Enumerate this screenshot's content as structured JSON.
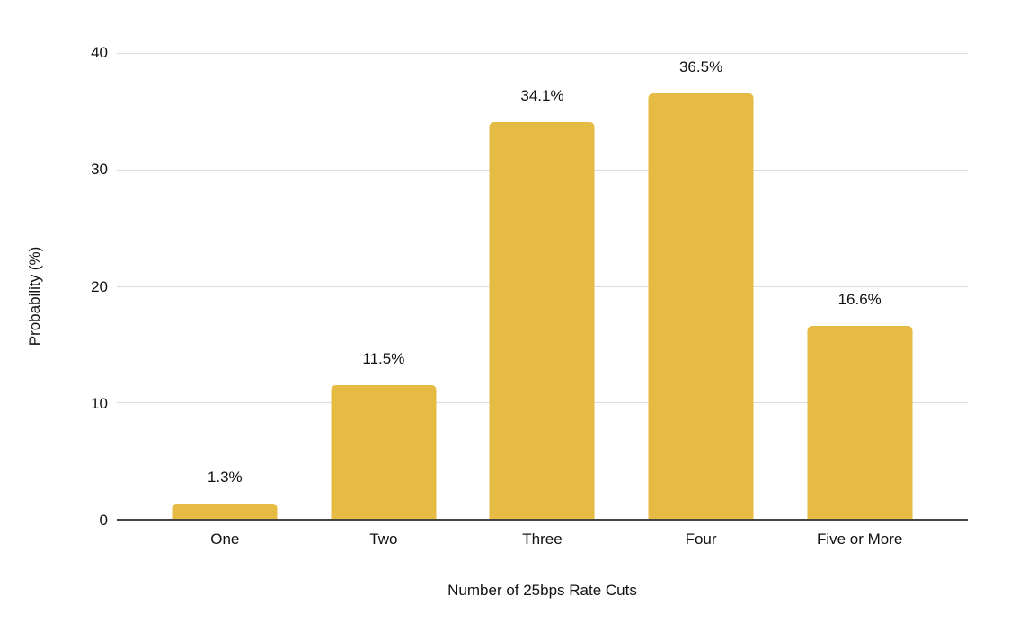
{
  "chart_data": {
    "type": "bar",
    "title": "",
    "categories": [
      "One",
      "Two",
      "Three",
      "Four",
      "Five or More"
    ],
    "values": [
      1.3,
      11.5,
      34.1,
      36.5,
      16.6
    ],
    "data_labels": [
      "1.3%",
      "11.5%",
      "34.1%",
      "36.5%",
      "16.6%"
    ],
    "xlabel": "Number of 25bps Rate Cuts",
    "ylabel": "Probability (%)",
    "ylim": [
      0,
      40
    ],
    "yticks": [
      0,
      10,
      20,
      30,
      40
    ],
    "grid": "horizontal",
    "legend": "none",
    "colors": {
      "bar": "#e6bb43",
      "gridline": "#dcdcdc",
      "axis_line": "#444444",
      "text": "#111111",
      "background": "#ffffff"
    }
  }
}
